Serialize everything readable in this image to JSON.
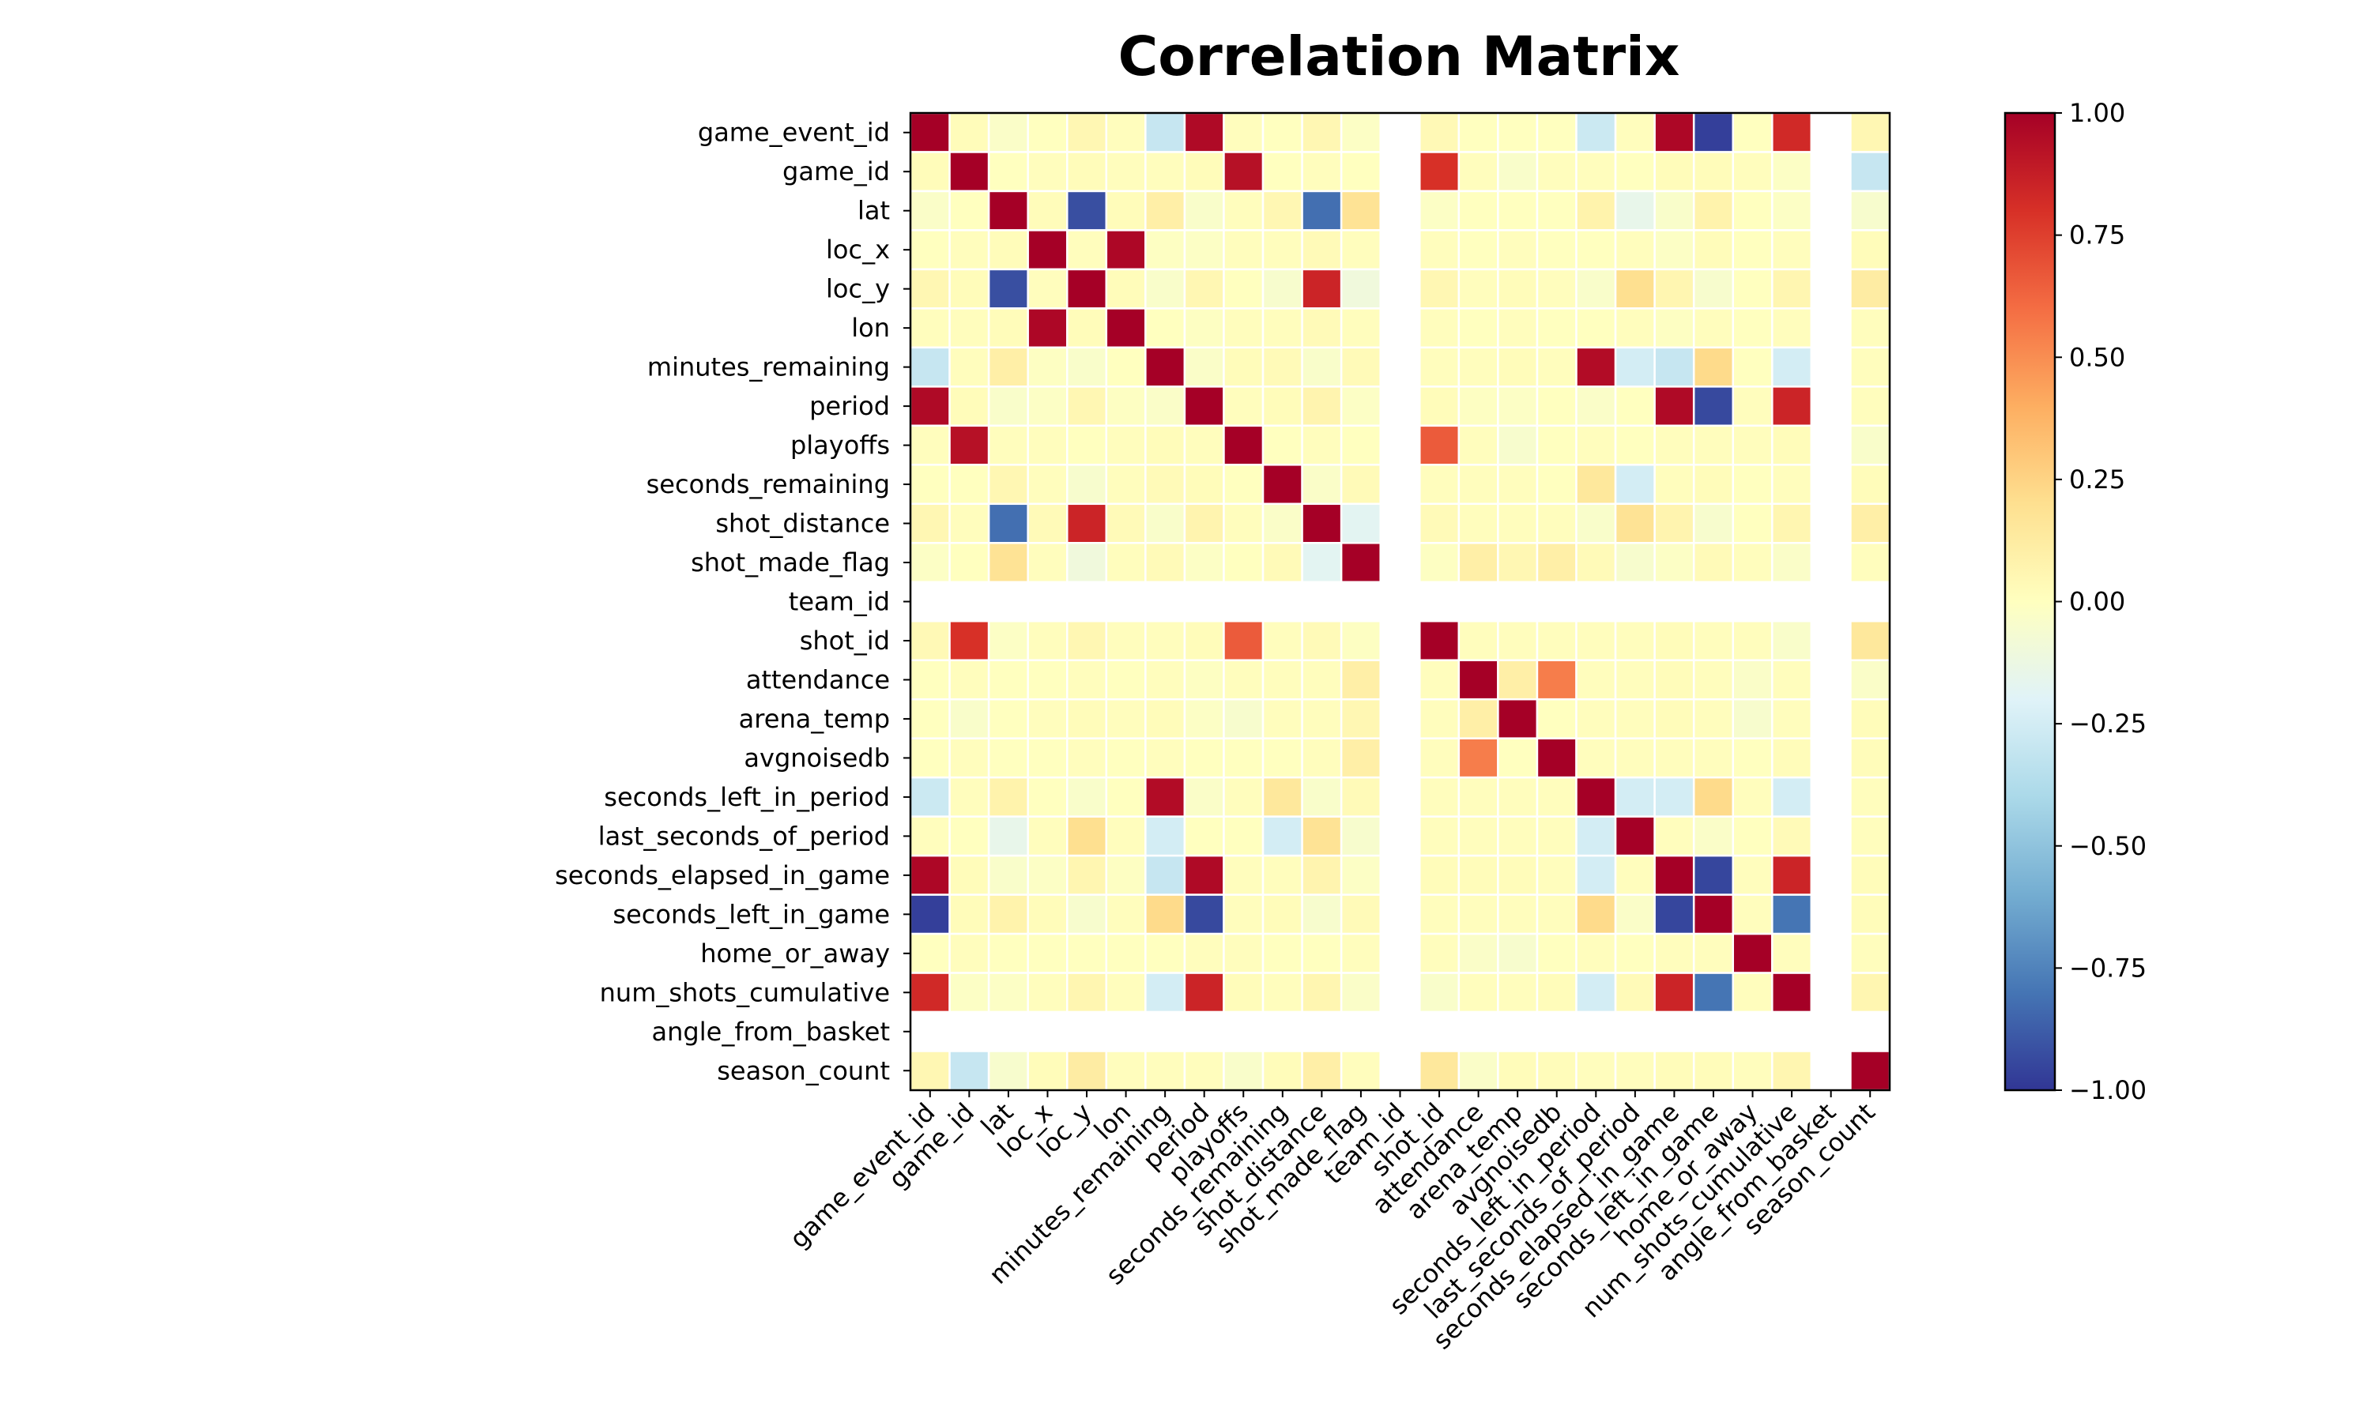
{
  "chart_data": {
    "type": "heatmap",
    "title": "Correlation Matrix",
    "variables": [
      "game_event_id",
      "game_id",
      "lat",
      "loc_x",
      "loc_y",
      "lon",
      "minutes_remaining",
      "period",
      "playoffs",
      "seconds_remaining",
      "shot_distance",
      "shot_made_flag",
      "team_id",
      "shot_id",
      "attendance",
      "arena_temp",
      "avgnoisedb",
      "seconds_left_in_period",
      "last_seconds_of_period",
      "seconds_elapsed_in_game",
      "seconds_left_in_game",
      "home_or_away",
      "num_shots_cumulative",
      "angle_from_basket",
      "season_count"
    ],
    "matrix": [
      [
        1,
        0.02,
        -0.03,
        0,
        0.05,
        0.01,
        -0.3,
        0.96,
        0.01,
        0,
        0.05,
        -0.02,
        null,
        0.04,
        0,
        0,
        0,
        -0.28,
        0.01,
        0.97,
        -0.97,
        0,
        0.83,
        null,
        0.05
      ],
      [
        0.02,
        1,
        0,
        0.01,
        0.02,
        0.01,
        0.01,
        0.02,
        0.93,
        0,
        0.01,
        0,
        null,
        0.8,
        0.01,
        -0.04,
        0.01,
        0.01,
        0,
        0.02,
        0.02,
        0.01,
        -0.02,
        null,
        -0.3
      ],
      [
        -0.03,
        0,
        1,
        0.02,
        -0.92,
        0.02,
        0.1,
        -0.04,
        0.01,
        0.05,
        -0.82,
        0.18,
        null,
        -0.02,
        0,
        0,
        0,
        0.08,
        -0.15,
        -0.04,
        0.08,
        0,
        -0.02,
        null,
        -0.05
      ],
      [
        0,
        0.01,
        0.02,
        1,
        0.01,
        0.97,
        -0.01,
        -0.02,
        0.01,
        0.01,
        0.03,
        0.01,
        null,
        0.01,
        0,
        0.01,
        0,
        0,
        0.01,
        -0.02,
        0.02,
        0,
        0.01,
        null,
        0.02
      ],
      [
        0.05,
        0.02,
        -0.92,
        0.01,
        1,
        0.02,
        -0.04,
        0.05,
        0,
        -0.05,
        0.85,
        -0.1,
        null,
        0.05,
        0.01,
        0.02,
        0.01,
        -0.04,
        0.2,
        0.06,
        -0.05,
        0,
        0.06,
        null,
        0.12
      ],
      [
        0.01,
        0.01,
        0.02,
        0.97,
        0.02,
        1,
        0,
        -0.01,
        0.01,
        0.01,
        0.03,
        0.01,
        null,
        0.01,
        0,
        0.01,
        0,
        0,
        0.01,
        -0.01,
        0.01,
        0,
        0.01,
        null,
        0.01
      ],
      [
        -0.3,
        0.01,
        0.1,
        -0.01,
        -0.04,
        0,
        1,
        -0.03,
        0.02,
        0.03,
        -0.04,
        0.03,
        null,
        0.01,
        0.01,
        0.02,
        0.01,
        0.95,
        -0.25,
        -0.3,
        0.22,
        0,
        -0.25,
        null,
        0.01
      ],
      [
        0.96,
        0.02,
        -0.04,
        -0.02,
        0.05,
        -0.01,
        -0.03,
        1,
        0.01,
        0.02,
        0.07,
        -0.02,
        null,
        0.02,
        -0.01,
        -0.02,
        0,
        -0.03,
        0,
        0.96,
        -0.94,
        0.01,
        0.85,
        null,
        0.01
      ],
      [
        0.01,
        0.93,
        0.01,
        0.01,
        0,
        0.01,
        0.02,
        0.01,
        1,
        0,
        0.01,
        0,
        null,
        0.66,
        0.01,
        -0.05,
        0,
        0.01,
        0,
        0.01,
        0.01,
        0.01,
        0.02,
        null,
        -0.04
      ],
      [
        0,
        0,
        0.05,
        0.01,
        -0.05,
        0.01,
        0.03,
        0.02,
        0,
        1,
        -0.03,
        0.03,
        null,
        0.01,
        0.01,
        0.01,
        0,
        0.15,
        -0.25,
        0.01,
        0.02,
        0,
        0.01,
        null,
        0.02
      ],
      [
        0.05,
        0.01,
        -0.82,
        0.03,
        0.85,
        0.03,
        -0.04,
        0.07,
        0.01,
        -0.03,
        1,
        -0.18,
        null,
        0.03,
        0.01,
        0.01,
        0.01,
        -0.04,
        0.18,
        0.07,
        -0.05,
        0,
        0.06,
        null,
        0.1
      ],
      [
        -0.02,
        0,
        0.18,
        0.01,
        -0.1,
        0.01,
        0.03,
        -0.02,
        0,
        0.03,
        -0.18,
        1,
        null,
        -0.01,
        0.1,
        0.05,
        0.1,
        0.03,
        -0.05,
        -0.02,
        0.03,
        0.01,
        -0.03,
        null,
        0.01
      ],
      [
        null,
        null,
        null,
        null,
        null,
        null,
        null,
        null,
        null,
        null,
        null,
        null,
        null,
        null,
        null,
        null,
        null,
        null,
        null,
        null,
        null,
        null,
        null,
        null,
        null
      ],
      [
        0.04,
        0.8,
        -0.02,
        0.01,
        0.05,
        0.01,
        0.01,
        0.02,
        0.66,
        0.01,
        0.03,
        -0.01,
        null,
        1,
        0.01,
        0.01,
        0.01,
        0.01,
        0.01,
        0.02,
        0.01,
        0.01,
        -0.04,
        null,
        0.15
      ],
      [
        0,
        0.01,
        0,
        0,
        0.01,
        0,
        0.01,
        -0.01,
        0.01,
        0.01,
        0.01,
        0.1,
        null,
        0.01,
        1,
        0.1,
        0.55,
        0.01,
        0.01,
        0.02,
        0.01,
        -0.03,
        0.01,
        null,
        -0.03
      ],
      [
        0,
        -0.04,
        0,
        0.01,
        0.02,
        0.01,
        0.02,
        -0.02,
        -0.05,
        0.01,
        0.01,
        0.05,
        null,
        0.01,
        0.1,
        1,
        0,
        0.01,
        0.01,
        0.02,
        0.01,
        -0.05,
        0.01,
        null,
        0.02
      ],
      [
        0,
        0.01,
        0,
        0,
        0.01,
        0,
        0.01,
        0,
        0,
        0,
        0.01,
        0.1,
        null,
        0.01,
        0.55,
        0,
        1,
        0.01,
        0.01,
        0.01,
        0.01,
        0,
        0.02,
        null,
        0.02
      ],
      [
        -0.28,
        0.01,
        0.08,
        0,
        -0.04,
        0,
        0.95,
        -0.03,
        0.01,
        0.15,
        -0.04,
        0.03,
        null,
        0.01,
        0.01,
        0.01,
        0.01,
        1,
        -0.25,
        -0.25,
        0.22,
        0.01,
        -0.25,
        null,
        0.01
      ],
      [
        0.01,
        0,
        -0.15,
        0.01,
        0.2,
        0.01,
        -0.25,
        0,
        0,
        -0.25,
        0.18,
        -0.05,
        null,
        0.01,
        0.01,
        0.01,
        0.01,
        -0.25,
        1,
        0.01,
        -0.03,
        0,
        0.03,
        null,
        0.01
      ],
      [
        0.97,
        0.02,
        -0.04,
        -0.02,
        0.06,
        -0.01,
        -0.3,
        0.96,
        0.01,
        0.01,
        0.07,
        -0.02,
        null,
        0.02,
        0.02,
        0.02,
        0.01,
        -0.25,
        0.01,
        1,
        -0.95,
        0.01,
        0.85,
        null,
        0.02
      ],
      [
        -0.97,
        0.02,
        0.08,
        0.02,
        -0.05,
        0.01,
        0.22,
        -0.94,
        0.01,
        0.02,
        -0.05,
        0.03,
        null,
        0.01,
        0.01,
        0.01,
        0.01,
        0.22,
        -0.03,
        -0.95,
        1,
        0.01,
        -0.8,
        null,
        0.02
      ],
      [
        0,
        0.01,
        0,
        0,
        0,
        0,
        0,
        0.01,
        0.01,
        0,
        0,
        0.01,
        null,
        0.01,
        -0.03,
        -0.05,
        0,
        0.01,
        0,
        0.01,
        0.01,
        1,
        0.01,
        null,
        0.01
      ],
      [
        0.83,
        -0.02,
        -0.02,
        0.01,
        0.06,
        0.01,
        -0.25,
        0.85,
        0.02,
        0.01,
        0.06,
        -0.03,
        null,
        -0.04,
        0.01,
        0.01,
        0.02,
        -0.25,
        0.03,
        0.85,
        -0.8,
        0.01,
        1,
        null,
        0.06
      ],
      [
        null,
        null,
        null,
        null,
        null,
        null,
        null,
        null,
        null,
        null,
        null,
        null,
        null,
        null,
        null,
        null,
        null,
        null,
        null,
        null,
        null,
        null,
        null,
        null,
        null
      ],
      [
        0.05,
        -0.3,
        -0.05,
        0.02,
        0.12,
        0.01,
        0.01,
        0.01,
        -0.04,
        0.02,
        0.1,
        0.01,
        null,
        0.15,
        -0.03,
        0.02,
        0.02,
        0.01,
        0.01,
        0.02,
        0.02,
        0.01,
        0.06,
        null,
        1
      ]
    ],
    "vmin": -1,
    "vmax": 1,
    "colormap": "RdYlBu_r",
    "colorbar_ticks": [
      "1.00",
      "0.75",
      "0.50",
      "0.25",
      "0.00",
      "−0.25",
      "−0.50",
      "−0.75",
      "−1.00"
    ],
    "colorbar_values": [
      1,
      0.75,
      0.5,
      0.25,
      0,
      -0.25,
      -0.5,
      -0.75,
      -1
    ],
    "missing_color": "#ffffff",
    "cell_border_color": "#ffffff"
  }
}
